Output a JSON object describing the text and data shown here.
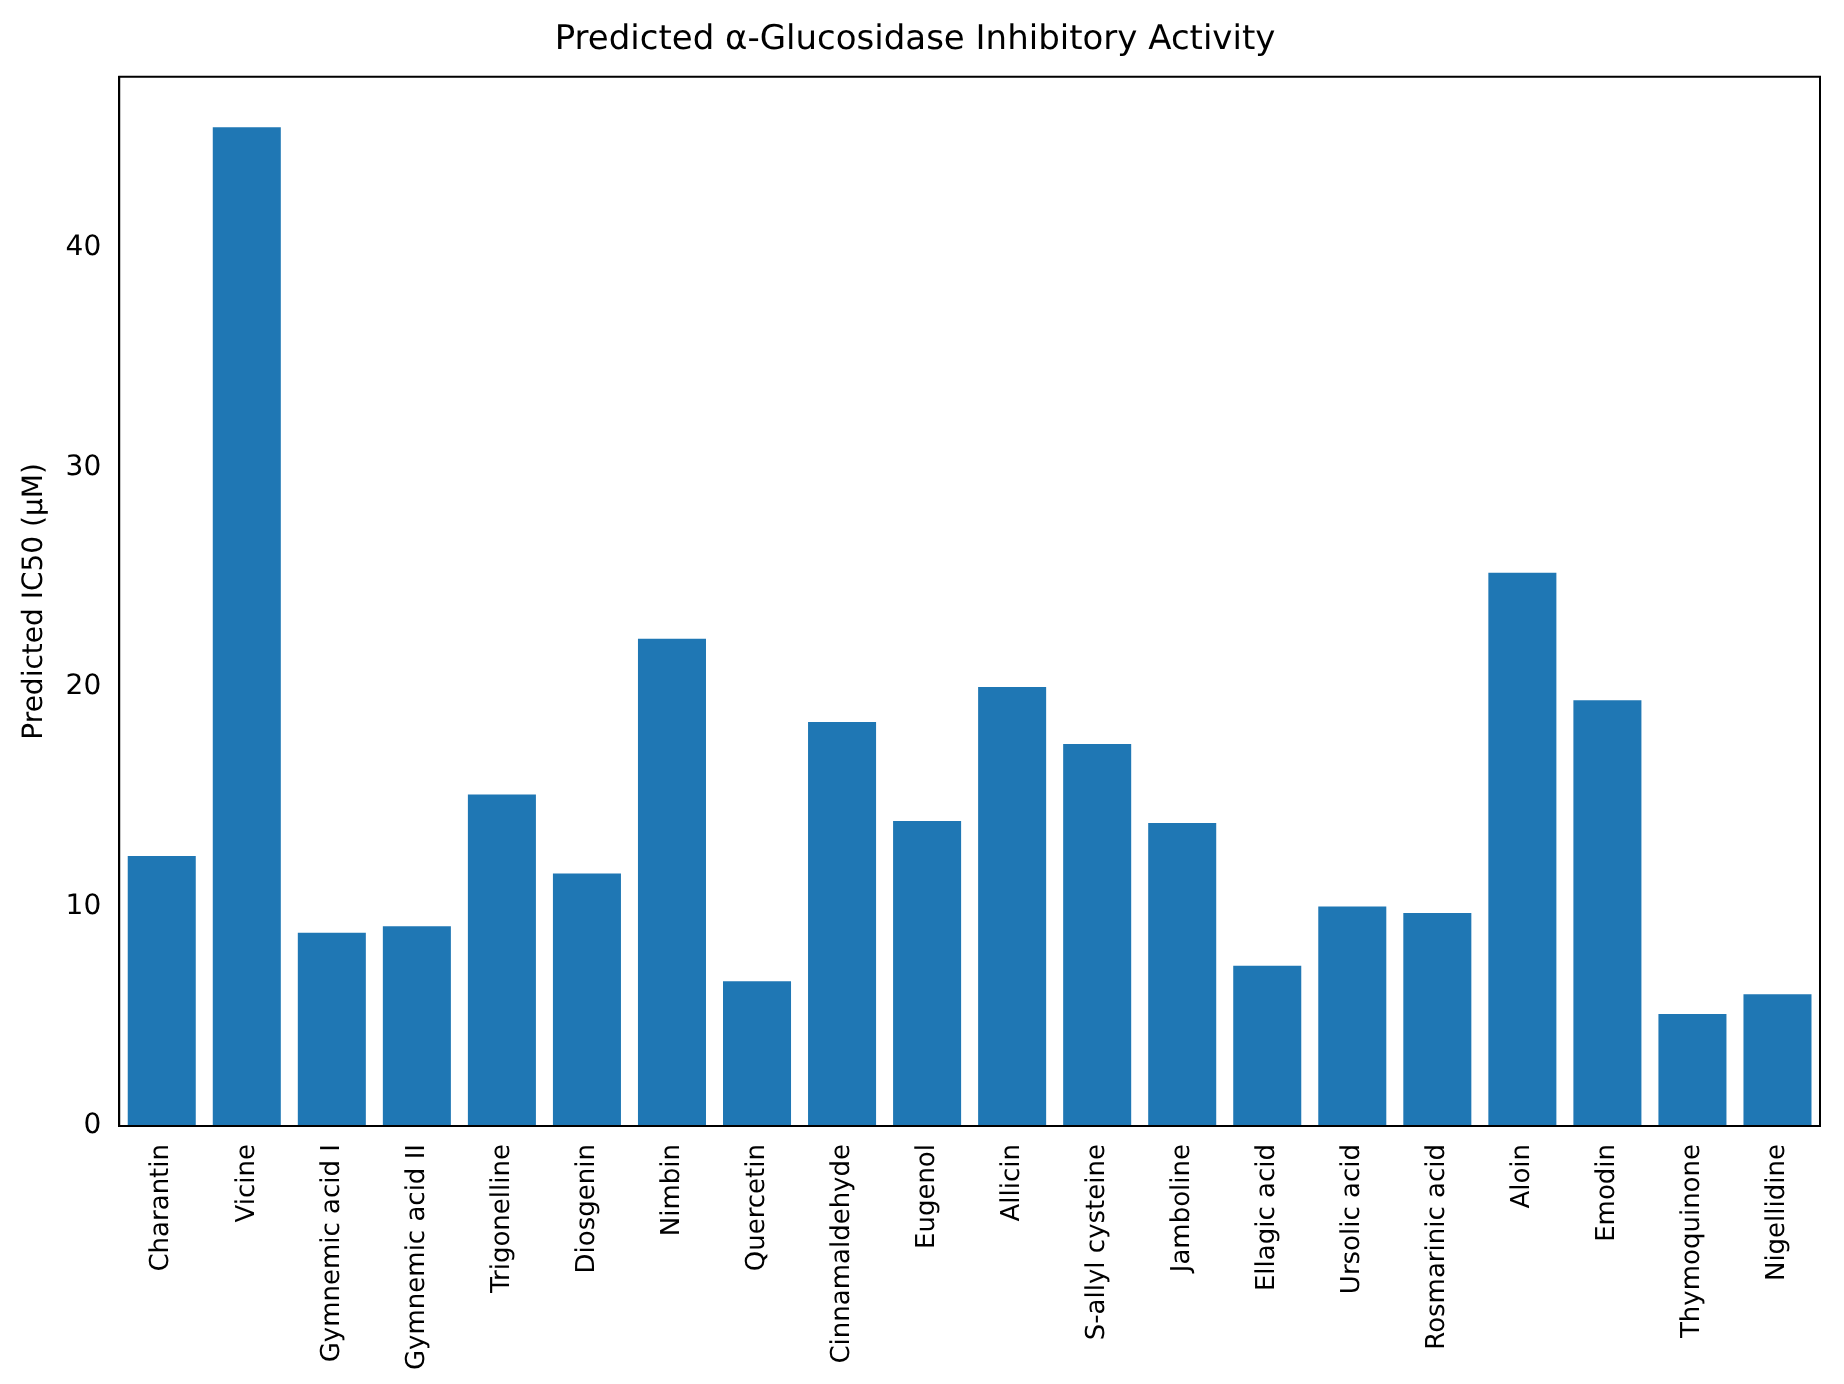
{
  "chart_data": {
    "type": "bar",
    "title": "Predicted α-Glucosidase Inhibitory Activity",
    "ylabel": "Predicted IC50 (μM)",
    "categories": [
      "Charantin",
      "Vicine",
      "Gymnemic acid I",
      "Gymnemic acid II",
      "Trigonelline",
      "Diosgenin",
      "Nimbin",
      "Quercetin",
      "Cinnamaldehyde",
      "Eugenol",
      "Allicin",
      "S-allyl cysteine",
      "Jamboline",
      "Ellagic acid",
      "Ursolic acid",
      "Rosmarinic acid",
      "Aloin",
      "Emodin",
      "Thymoquinone",
      "Nigellidine"
    ],
    "values": [
      12.3,
      45.5,
      8.8,
      9.1,
      15.1,
      11.5,
      22.2,
      6.6,
      18.4,
      13.9,
      20.0,
      17.4,
      13.8,
      7.3,
      10.0,
      9.7,
      25.2,
      19.4,
      5.1,
      6.0
    ],
    "color": "#1f77b4",
    "ylim": [
      0,
      47.8
    ],
    "yticks": [
      0,
      10,
      20,
      30,
      40
    ],
    "grid": false,
    "legend": false
  }
}
